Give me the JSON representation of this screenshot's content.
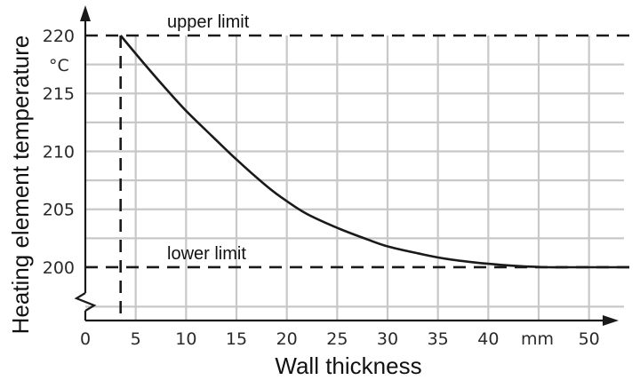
{
  "chart_data": {
    "type": "line",
    "xlabel": "Wall thickness",
    "ylabel": "Heating element temperature",
    "y_unit": "°C",
    "x_unit": "mm",
    "x_ticks": [
      "0",
      "5",
      "10",
      "15",
      "20",
      "25",
      "30",
      "35",
      "40",
      "50"
    ],
    "y_ticks": [
      "200",
      "205",
      "210",
      "215",
      "220"
    ],
    "x_tick_values": [
      0,
      5,
      10,
      15,
      20,
      25,
      30,
      35,
      40,
      50
    ],
    "y_tick_values": [
      200,
      205,
      210,
      215,
      220
    ],
    "xlim": [
      0,
      54
    ],
    "ylim": [
      195.4,
      220
    ],
    "grid": true,
    "y_axis_break": true,
    "series": [
      {
        "x": [
          3.5,
          6,
          8,
          10,
          12,
          15,
          18,
          20,
          22,
          25,
          28,
          30,
          33,
          36,
          40,
          43,
          46,
          48,
          50,
          55
        ],
        "y": [
          220,
          217.4,
          215.4,
          213.5,
          211.8,
          209.3,
          207.0,
          205.7,
          204.6,
          203.4,
          202.4,
          201.8,
          201.2,
          200.7,
          200.3,
          200.1,
          200.0,
          200.0,
          200.0,
          200.0
        ]
      }
    ],
    "reference_lines": {
      "upper": {
        "y": 220,
        "label": "upper limit"
      },
      "lower": {
        "y": 200,
        "label": "lower limit"
      },
      "vertical": {
        "x": 3.5
      }
    },
    "colors": {
      "grid": "#c8c8c8",
      "line": "#1a1a1a"
    }
  }
}
